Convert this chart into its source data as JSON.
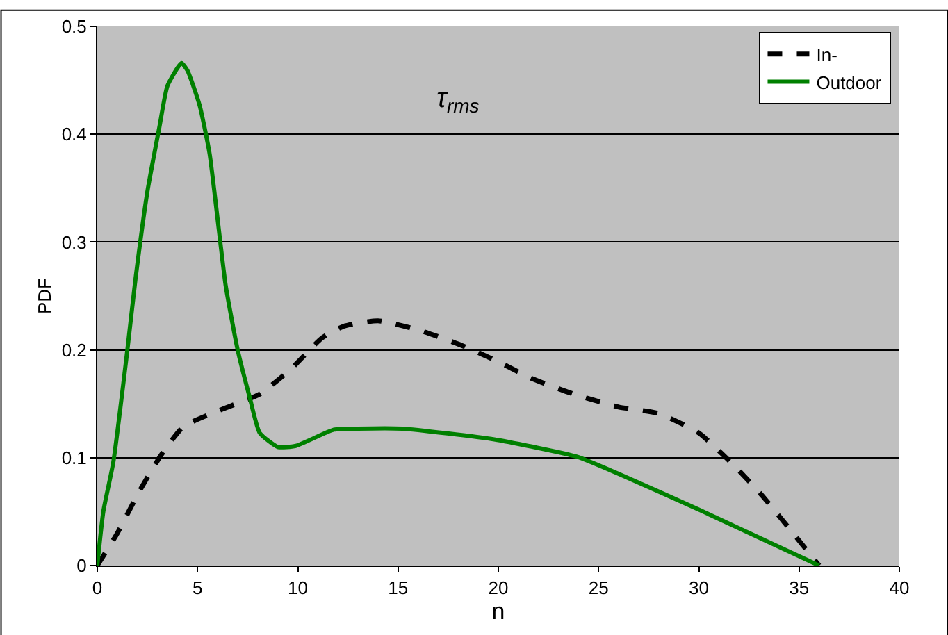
{
  "chart_data": {
    "type": "line",
    "xlabel": "n",
    "ylabel": "PDF",
    "annotations": [
      "τ$_{rms}$"
    ],
    "xlim": [
      0,
      40
    ],
    "xticks": [
      0,
      5,
      10,
      15,
      20,
      25,
      30,
      35,
      40
    ],
    "ylim": [
      0,
      0.5
    ],
    "yticks": [
      0,
      0.1,
      0.2,
      0.3,
      0.4,
      0.5
    ],
    "grid": "y",
    "legend": "top right",
    "marker": "none",
    "series": [
      {
        "name": "In-",
        "color": "#000000",
        "line_style": "dashed",
        "x": [
          0,
          1,
          2.1,
          3.2,
          4.3,
          6.1,
          8.1,
          9.7,
          11.2,
          12.3,
          14.0,
          16.1,
          18.2,
          20.0,
          21.6,
          23.6,
          26.0,
          28.0,
          30.0,
          31.8,
          33.2,
          36
        ],
        "values": [
          0,
          0.03,
          0.069,
          0.103,
          0.129,
          0.144,
          0.159,
          0.183,
          0.211,
          0.222,
          0.227,
          0.218,
          0.204,
          0.189,
          0.174,
          0.16,
          0.147,
          0.141,
          0.123,
          0.092,
          0.064,
          0
        ]
      },
      {
        "name": "Outdoor",
        "color": "#008000",
        "line_style": "solid",
        "x": [
          0,
          0.3,
          0.8,
          1.5,
          1.9,
          2.5,
          3.1,
          3.5,
          4.2,
          4.5,
          5.1,
          5.6,
          6.4,
          7.0,
          7.6,
          8.1,
          9.0,
          9.9,
          11.8,
          13.0,
          15.2,
          19.8,
          23.9,
          26.0,
          30.1,
          36
        ],
        "values": [
          0,
          0.05,
          0.096,
          0.2,
          0.265,
          0.347,
          0.407,
          0.445,
          0.466,
          0.459,
          0.427,
          0.382,
          0.26,
          0.2,
          0.156,
          0.123,
          0.11,
          0.111,
          0.126,
          0.127,
          0.127,
          0.117,
          0.101,
          0.085,
          0.051,
          0
        ]
      }
    ]
  }
}
